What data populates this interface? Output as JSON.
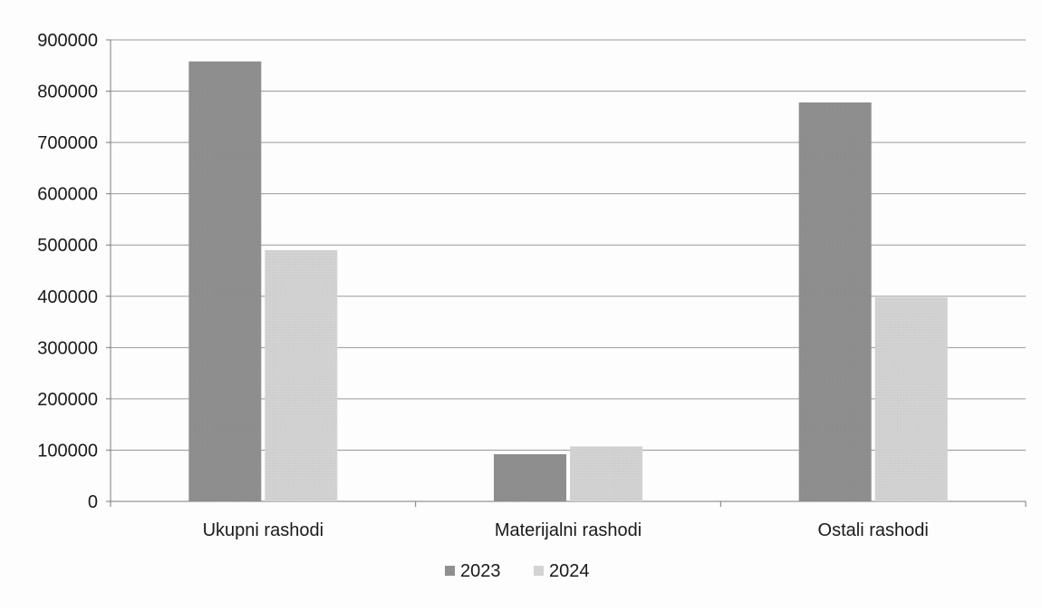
{
  "chart_data": {
    "type": "bar",
    "title": "",
    "xlabel": "",
    "ylabel": "",
    "categories": [
      "Ukupni rashodi",
      "Materijalni rashodi",
      "Ostali rashodi"
    ],
    "series": [
      {
        "name": "2023",
        "values": [
          858000,
          92000,
          778000
        ],
        "color": "#8f8f8f"
      },
      {
        "name": "2024",
        "values": [
          490000,
          107000,
          398000
        ],
        "color": "#d3d3d3"
      }
    ],
    "ylim": [
      0,
      900000
    ],
    "yticks": [
      "0",
      "100000",
      "200000",
      "300000",
      "400000",
      "500000",
      "600000",
      "700000",
      "800000",
      "900000"
    ],
    "grid": true,
    "legend_position": "bottom-center"
  }
}
